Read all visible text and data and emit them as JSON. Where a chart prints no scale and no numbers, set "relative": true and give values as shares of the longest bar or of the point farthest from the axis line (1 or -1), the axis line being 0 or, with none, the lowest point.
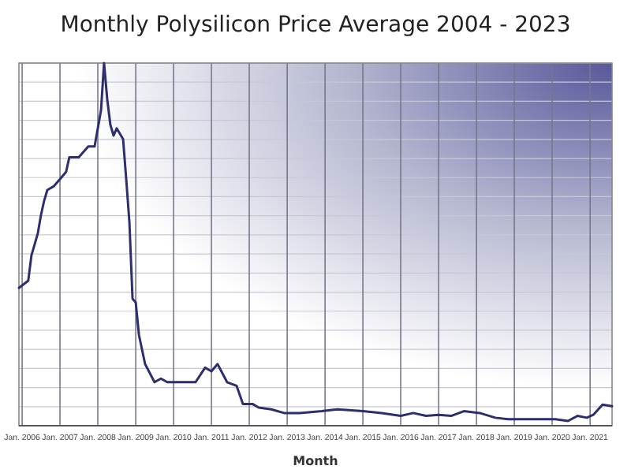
{
  "chart_data": {
    "type": "line",
    "title": "Monthly Polysilicon Price Average 2004 - 2023",
    "xlabel": "Month",
    "relative": true,
    "grid": true,
    "marker": "none",
    "line_style": "solid",
    "xlim": [
      "2005-12",
      "2021-08"
    ],
    "xticks": [
      {
        "value": "2006-01",
        "label": "Jan. 2006"
      },
      {
        "value": "2007-01",
        "label": "Jan. 2007"
      },
      {
        "value": "2008-01",
        "label": "Jan. 2008"
      },
      {
        "value": "2009-01",
        "label": "Jan. 2009"
      },
      {
        "value": "2010-01",
        "label": "Jan. 2010"
      },
      {
        "value": "2011-01",
        "label": "Jan. 2011"
      },
      {
        "value": "2012-01",
        "label": "Jan. 2012"
      },
      {
        "value": "2013-01",
        "label": "Jan. 2013"
      },
      {
        "value": "2014-01",
        "label": "Jan. 2014"
      },
      {
        "value": "2015-01",
        "label": "Jan. 2015"
      },
      {
        "value": "2016-01",
        "label": "Jan. 2016"
      },
      {
        "value": "2017-01",
        "label": "Jan. 2017"
      },
      {
        "value": "2018-01",
        "label": "Jan. 2018"
      },
      {
        "value": "2019-01",
        "label": "Jan. 2019"
      },
      {
        "value": "2020-01",
        "label": "Jan. 2020"
      },
      {
        "value": "2021-01",
        "label": "Jan. 2021"
      }
    ],
    "series": [
      {
        "color": "#2e2e6e",
        "x": [
          "2005-12",
          "2006-03",
          "2006-04",
          "2006-06",
          "2006-07",
          "2006-08",
          "2006-09",
          "2006-11",
          "2007-01",
          "2007-03",
          "2007-04",
          "2007-07",
          "2007-10",
          "2007-12",
          "2008-01",
          "2008-02",
          "2008-03",
          "2008-04",
          "2008-05",
          "2008-06",
          "2008-07",
          "2008-09",
          "2008-10",
          "2008-11",
          "2008-12",
          "2009-01",
          "2009-02",
          "2009-04",
          "2009-07",
          "2009-09",
          "2009-11",
          "2010-04",
          "2010-08",
          "2010-11",
          "2011-01",
          "2011-03",
          "2011-06",
          "2011-09",
          "2011-11",
          "2012-02",
          "2012-04",
          "2012-08",
          "2012-12",
          "2013-05",
          "2013-12",
          "2014-05",
          "2015-01",
          "2015-07",
          "2016-01",
          "2016-05",
          "2016-09",
          "2017-01",
          "2017-05",
          "2017-09",
          "2018-02",
          "2018-07",
          "2018-11",
          "2019-07",
          "2020-02",
          "2020-06",
          "2020-09",
          "2020-12",
          "2021-02",
          "2021-05",
          "2021-08"
        ],
        "values": [
          0.38,
          0.4,
          0.47,
          0.53,
          0.58,
          0.62,
          0.65,
          0.66,
          0.68,
          0.7,
          0.74,
          0.74,
          0.77,
          0.77,
          0.82,
          0.87,
          1.0,
          0.9,
          0.83,
          0.8,
          0.82,
          0.79,
          0.68,
          0.56,
          0.35,
          0.34,
          0.25,
          0.17,
          0.12,
          0.13,
          0.12,
          0.12,
          0.12,
          0.16,
          0.15,
          0.17,
          0.12,
          0.11,
          0.06,
          0.06,
          0.05,
          0.045,
          0.035,
          0.035,
          0.04,
          0.045,
          0.04,
          0.035,
          0.027,
          0.035,
          0.027,
          0.03,
          0.027,
          0.04,
          0.035,
          0.022,
          0.018,
          0.018,
          0.018,
          0.013,
          0.027,
          0.022,
          0.03,
          0.058,
          0.054
        ]
      }
    ]
  }
}
